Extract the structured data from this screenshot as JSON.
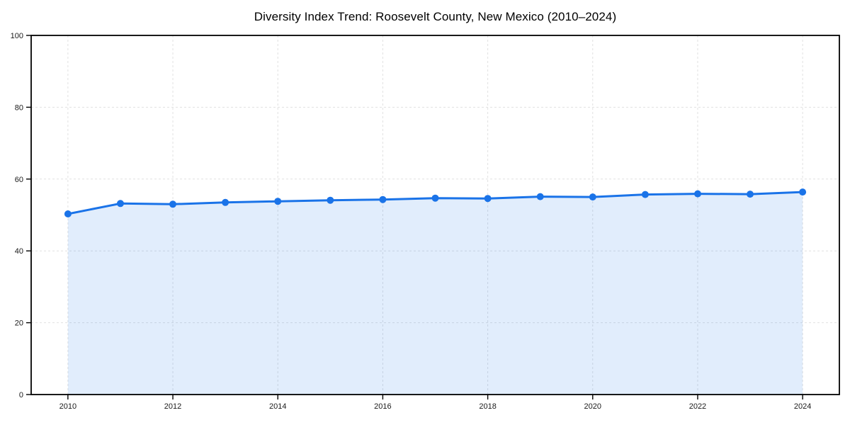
{
  "page": {
    "background": "#ffffff"
  },
  "chart_data": {
    "type": "area",
    "title": "Diversity Index Trend: Roosevelt County, New Mexico (2010–2024)",
    "x": [
      2010,
      2011,
      2012,
      2013,
      2014,
      2015,
      2016,
      2017,
      2018,
      2019,
      2020,
      2021,
      2022,
      2023,
      2024
    ],
    "series": [
      {
        "name": "Diversity Index",
        "values": [
          50.3,
          53.2,
          53.0,
          53.5,
          53.8,
          54.1,
          54.3,
          54.7,
          54.6,
          55.1,
          55.0,
          55.7,
          55.9,
          55.8,
          56.4
        ]
      }
    ],
    "xlabel": "",
    "ylabel": "",
    "ylim": [
      0,
      100
    ],
    "yticks": [
      0,
      20,
      40,
      60,
      80,
      100
    ],
    "xticks": [
      2010,
      2012,
      2014,
      2016,
      2018,
      2020,
      2022,
      2024
    ],
    "x_margin_fraction": 0.05,
    "grid": true,
    "grid_style": "dashed",
    "legend": false,
    "marker": "circle",
    "colors": {
      "line": "#1a73e8",
      "fill": "#1a73e8",
      "fill_opacity": 0.13,
      "grid": "#e1e1e1",
      "axis": "#000000",
      "tick_text": "#1a1a1a",
      "title_text": "#000000",
      "background": "#ffffff"
    }
  }
}
